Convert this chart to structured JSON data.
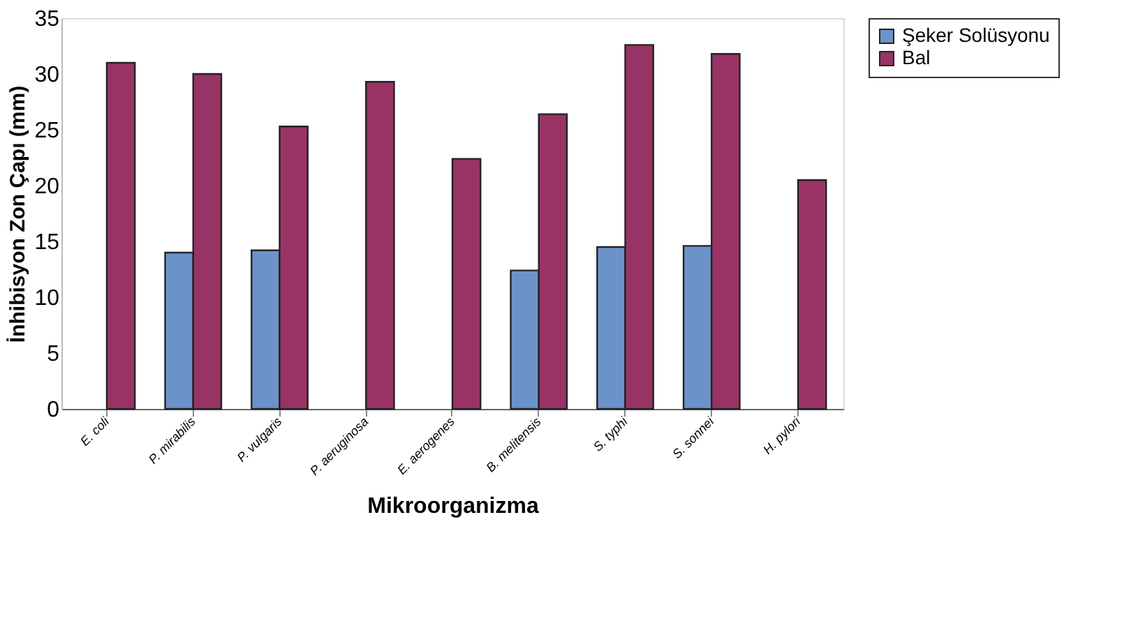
{
  "chart_data": {
    "type": "bar",
    "xlabel": "Mikroorganizma",
    "ylabel": "İnhibisyon Zon Çapı (mm)",
    "categories": [
      "E. coli",
      "P. mirabilis",
      "P. vulgaris",
      "P. aeruginosa",
      "E. aerogenes",
      "B. melitensis",
      "S. typhi",
      "S. sonnei",
      "H. pylori"
    ],
    "series": [
      {
        "name": "Şeker Solüsyonu",
        "color": "#6c93c9",
        "values": [
          null,
          14.0,
          14.2,
          null,
          null,
          12.4,
          14.5,
          14.6,
          null
        ]
      },
      {
        "name": "Bal",
        "color": "#993366",
        "values": [
          31.0,
          30.0,
          25.3,
          29.3,
          22.4,
          26.4,
          32.6,
          31.8,
          20.5
        ]
      }
    ],
    "ylim": [
      0,
      35
    ],
    "yticks": [
      0,
      5,
      10,
      15,
      20,
      25,
      30,
      35
    ],
    "grid": false,
    "legend": "right"
  }
}
